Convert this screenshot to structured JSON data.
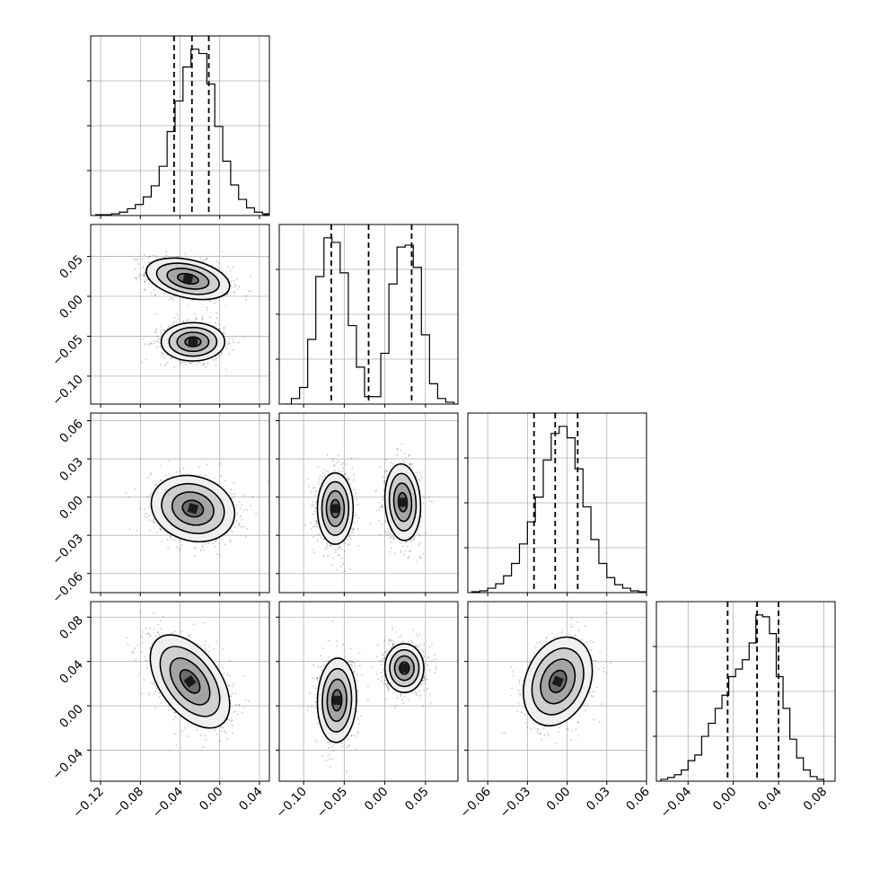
{
  "chart_data": {
    "type": "corner",
    "grid": true,
    "n_parameters": 4,
    "parameters": [
      {
        "xlim": [
          -0.13,
          0.05
        ],
        "ticks": [
          -0.12,
          -0.08,
          -0.04,
          0.0,
          0.04
        ],
        "tick_labels": [
          "−0.12",
          "−0.08",
          "−0.04",
          "0.00",
          "0.04"
        ]
      },
      {
        "xlim": [
          -0.13,
          0.09
        ],
        "ticks": [
          -0.1,
          -0.05,
          0.0,
          0.05
        ],
        "tick_labels": [
          "−0.10",
          "−0.05",
          "0.00",
          "0.05"
        ]
      },
      {
        "xlim": [
          -0.075,
          0.06
        ],
        "ticks": [
          -0.06,
          -0.03,
          0.0,
          0.03,
          0.06
        ],
        "tick_labels": [
          "−0.06",
          "−0.03",
          "0.00",
          "0.03",
          "0.06"
        ]
      },
      {
        "xlim": [
          -0.068,
          0.09
        ],
        "ticks": [
          -0.04,
          0.0,
          0.04,
          0.08
        ],
        "tick_labels": [
          "−0.04",
          "0.00",
          "0.04",
          "0.08"
        ]
      }
    ],
    "y_axis_ticks": {
      "row1": {
        "ylim": [
          -0.135,
          0.09
        ],
        "ticks": [
          0.05,
          0.0,
          -0.05,
          -0.1
        ],
        "tick_labels": [
          "0.05",
          "0.00",
          "−0.05",
          "−0.10"
        ]
      },
      "row2": {
        "ylim": [
          -0.075,
          0.066
        ],
        "ticks": [
          0.06,
          0.03,
          0.0,
          -0.03,
          -0.06
        ],
        "tick_labels": [
          "0.06",
          "0.03",
          "0.00",
          "−0.03",
          "−0.06"
        ]
      },
      "row3": {
        "ylim": [
          -0.068,
          0.094
        ],
        "ticks": [
          0.08,
          0.04,
          0.0,
          -0.04
        ],
        "tick_labels": [
          "0.08",
          "0.04",
          "0.00",
          "−0.04"
        ]
      }
    },
    "histograms": [
      {
        "param": 0,
        "bins": [
          -0.125,
          -0.117,
          -0.109,
          -0.101,
          -0.093,
          -0.085,
          -0.077,
          -0.069,
          -0.061,
          -0.053,
          -0.045,
          -0.037,
          -0.029,
          -0.021,
          -0.013,
          -0.005,
          0.003,
          0.011,
          0.019,
          0.027,
          0.035,
          0.043
        ],
        "counts": [
          1,
          1,
          2,
          4,
          8,
          13,
          22,
          35,
          58,
          99,
          135,
          175,
          196,
          191,
          155,
          105,
          64,
          36,
          19,
          9,
          4,
          2
        ],
        "quantiles": [
          -0.046,
          -0.028,
          -0.011
        ]
      },
      {
        "param": 1,
        "bins": [
          -0.125,
          -0.115,
          -0.105,
          -0.095,
          -0.085,
          -0.075,
          -0.065,
          -0.055,
          -0.045,
          -0.035,
          -0.025,
          -0.015,
          -0.005,
          0.005,
          0.015,
          0.025,
          0.035,
          0.045,
          0.055,
          0.065,
          0.075,
          0.085
        ],
        "counts": [
          0,
          6,
          18,
          70,
          138,
          180,
          175,
          142,
          85,
          40,
          8,
          8,
          55,
          130,
          170,
          172,
          148,
          75,
          22,
          6,
          2,
          0
        ],
        "quantiles": [
          -0.066,
          -0.02,
          0.033
        ]
      },
      {
        "param": 2,
        "bins": [
          -0.072,
          -0.066,
          -0.06,
          -0.054,
          -0.048,
          -0.042,
          -0.036,
          -0.03,
          -0.024,
          -0.018,
          -0.012,
          -0.006,
          0.0,
          0.006,
          0.012,
          0.018,
          0.024,
          0.03,
          0.036,
          0.042,
          0.048,
          0.054,
          0.06
        ],
        "counts": [
          1,
          2,
          5,
          10,
          19,
          33,
          55,
          80,
          108,
          150,
          180,
          188,
          175,
          140,
          97,
          60,
          33,
          17,
          9,
          5,
          2,
          1
        ],
        "quantiles": [
          -0.025,
          -0.009,
          0.008
        ]
      },
      {
        "param": 3,
        "bins": [
          -0.064,
          -0.058,
          -0.052,
          -0.046,
          -0.04,
          -0.034,
          -0.028,
          -0.022,
          -0.016,
          -0.01,
          -0.004,
          0.002,
          0.008,
          0.014,
          0.02,
          0.026,
          0.032,
          0.038,
          0.044,
          0.05,
          0.056,
          0.062,
          0.068,
          0.074,
          0.08
        ],
        "counts": [
          2,
          4,
          7,
          12,
          22,
          28,
          48,
          62,
          78,
          92,
          112,
          120,
          130,
          148,
          178,
          176,
          158,
          112,
          78,
          45,
          25,
          12,
          5,
          2
        ],
        "quantiles": [
          -0.005,
          0.021,
          0.04
        ]
      }
    ],
    "scatter_panels": [
      {
        "x_param": 0,
        "y_param": 1,
        "clusters": [
          {
            "center": [
              -0.032,
              0.022
            ],
            "sigma": [
              0.021,
              0.013
            ],
            "rho": -0.35
          },
          {
            "center": [
              -0.027,
              -0.057
            ],
            "sigma": [
              0.016,
              0.012
            ],
            "rho": 0.0
          }
        ]
      },
      {
        "x_param": 0,
        "y_param": 2,
        "clusters": [
          {
            "center": [
              -0.027,
              -0.009
            ],
            "sigma": [
              0.021,
              0.013
            ],
            "rho": -0.15
          }
        ]
      },
      {
        "x_param": 1,
        "y_param": 2,
        "clusters": [
          {
            "center": [
              -0.061,
              -0.009
            ],
            "sigma": [
              0.011,
              0.014
            ],
            "rho": 0.0
          },
          {
            "center": [
              0.022,
              -0.004
            ],
            "sigma": [
              0.011,
              0.015
            ],
            "rho": -0.1
          }
        ]
      },
      {
        "x_param": 0,
        "y_param": 3,
        "clusters": [
          {
            "center": [
              -0.03,
              0.022
            ],
            "sigma": [
              0.02,
              0.021
            ],
            "rho": -0.5
          }
        ]
      },
      {
        "x_param": 1,
        "y_param": 3,
        "clusters": [
          {
            "center": [
              -0.059,
              0.005
            ],
            "sigma": [
              0.012,
              0.019
            ],
            "rho": 0.05
          },
          {
            "center": [
              0.024,
              0.034
            ],
            "sigma": [
              0.012,
              0.011
            ],
            "rho": 0.0
          }
        ]
      },
      {
        "x_param": 2,
        "y_param": 3,
        "clusters": [
          {
            "center": [
              -0.007,
              0.022
            ],
            "sigma": [
              0.013,
              0.02
            ],
            "rho": 0.25
          }
        ]
      }
    ],
    "contour_levels_sigma": [
      0.5,
      1.0,
      1.5,
      2.0
    ]
  }
}
